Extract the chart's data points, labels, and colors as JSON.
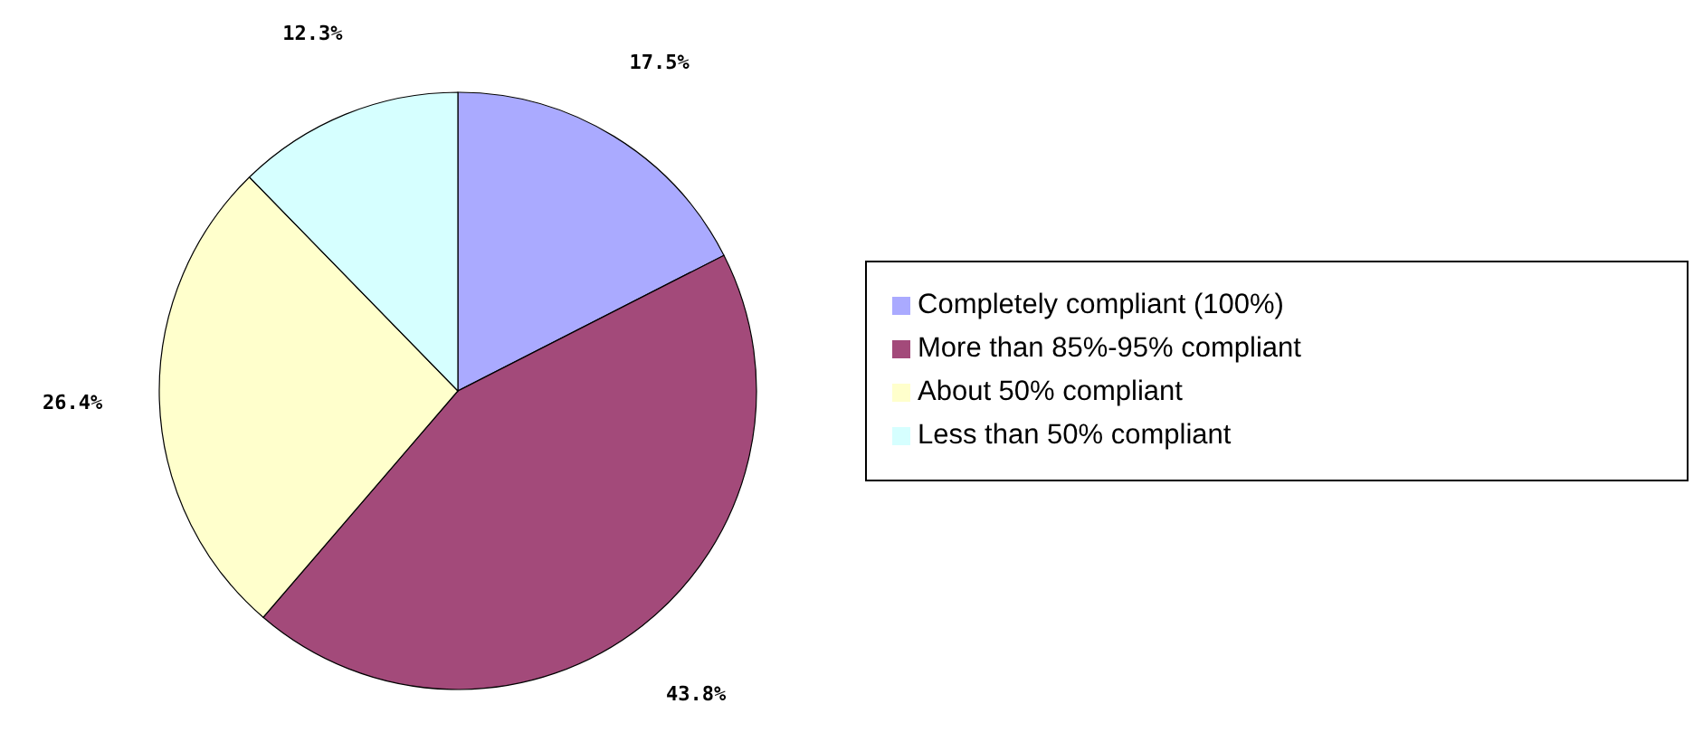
{
  "chart_data": {
    "type": "pie",
    "categories": [
      "Completely compliant (100%)",
      "More than 85%-95% compliant",
      "About 50% compliant",
      "Less than 50% compliant"
    ],
    "values": [
      17.5,
      43.8,
      26.4,
      12.3
    ],
    "colors": [
      "#aaaaff",
      "#a34a7a",
      "#ffffcc",
      "#d6ffff"
    ],
    "value_labels": [
      "17.5%",
      "43.8%",
      "26.4%",
      "12.3%"
    ],
    "legend": "right"
  }
}
